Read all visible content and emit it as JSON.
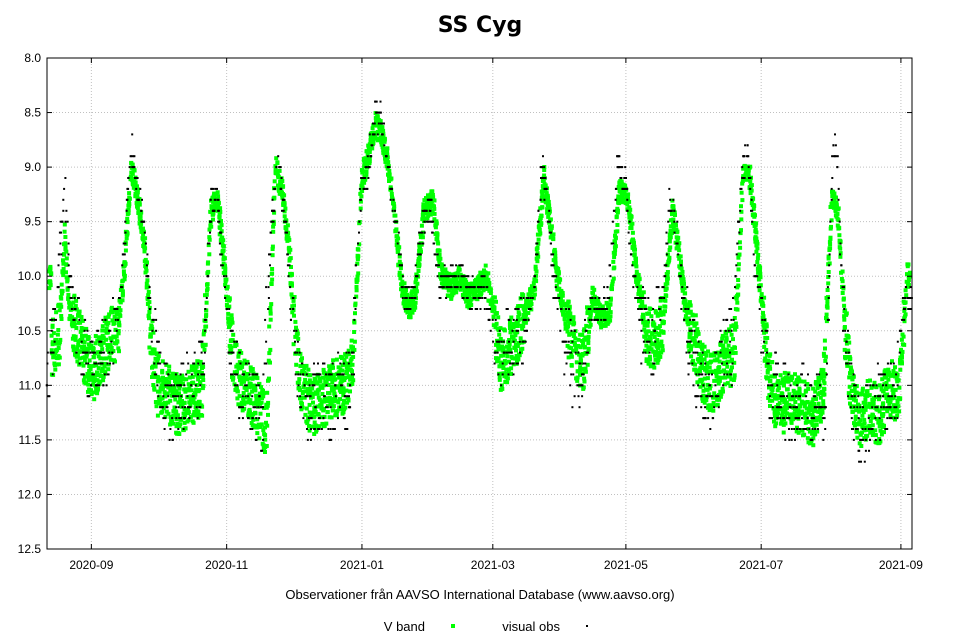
{
  "chart_data": {
    "type": "scatter",
    "title": "SS Cyg",
    "xlabel": "",
    "ylabel": "",
    "credit": "Observationer från AAVSO International Database (www.aavso.org)",
    "y_inverted": true,
    "ylim": [
      8.0,
      12.5
    ],
    "yticks": [
      "8.0",
      "8.5",
      "9.0",
      "9.5",
      "10.0",
      "10.5",
      "11.0",
      "11.5",
      "12.0",
      "12.5"
    ],
    "ytick_values": [
      8.0,
      8.5,
      9.0,
      9.5,
      10.0,
      10.5,
      11.0,
      11.5,
      12.0,
      12.5
    ],
    "xlim_days": [
      0,
      390
    ],
    "x_start": "2020-08-12",
    "xticks": [
      "2020-09",
      "2020-11",
      "2021-01",
      "2021-03",
      "2021-05",
      "2021-07",
      "2021-09"
    ],
    "xtick_days": [
      20,
      81,
      142,
      201,
      261,
      322,
      385
    ],
    "grid": true,
    "legend_position": "bottom-center",
    "colors": {
      "v_band": "#00ff00",
      "visual": "#000000",
      "grid": "#c0c0c0",
      "axis": "#000000"
    },
    "series": [
      {
        "name": "V band",
        "marker": "square",
        "color": "#00ff00",
        "light_curve": [
          [
            2,
            10.7
          ],
          [
            6,
            10.5
          ],
          [
            8,
            9.6
          ],
          [
            10,
            10.3
          ],
          [
            15,
            10.6
          ],
          [
            20,
            10.9
          ],
          [
            25,
            10.7
          ],
          [
            28,
            10.6
          ],
          [
            32,
            10.5
          ],
          [
            35,
            9.9
          ],
          [
            38,
            9.0
          ],
          [
            41,
            9.3
          ],
          [
            44,
            9.7
          ],
          [
            47,
            10.6
          ],
          [
            50,
            11.0
          ],
          [
            55,
            11.1
          ],
          [
            60,
            11.2
          ],
          [
            65,
            11.1
          ],
          [
            70,
            11.0
          ],
          [
            74,
            9.4
          ],
          [
            77,
            9.3
          ],
          [
            80,
            9.9
          ],
          [
            83,
            10.6
          ],
          [
            86,
            10.9
          ],
          [
            90,
            11.0
          ],
          [
            95,
            11.2
          ],
          [
            99,
            11.4
          ],
          [
            103,
            9.0
          ],
          [
            106,
            9.2
          ],
          [
            109,
            9.7
          ],
          [
            112,
            10.6
          ],
          [
            115,
            11.0
          ],
          [
            120,
            11.2
          ],
          [
            125,
            11.1
          ],
          [
            130,
            11.0
          ],
          [
            134,
            11.0
          ],
          [
            138,
            10.8
          ],
          [
            142,
            9.1
          ],
          [
            145,
            8.9
          ],
          [
            148,
            8.6
          ],
          [
            151,
            8.7
          ],
          [
            154,
            9.0
          ],
          [
            157,
            9.5
          ],
          [
            160,
            10.1
          ],
          [
            163,
            10.3
          ],
          [
            166,
            10.2
          ],
          [
            170,
            9.4
          ],
          [
            174,
            9.3
          ],
          [
            178,
            10.0
          ],
          [
            182,
            10.1
          ],
          [
            186,
            10.0
          ],
          [
            190,
            10.2
          ],
          [
            194,
            10.1
          ],
          [
            198,
            10.0
          ],
          [
            201,
            10.3
          ],
          [
            205,
            10.8
          ],
          [
            210,
            10.6
          ],
          [
            215,
            10.4
          ],
          [
            220,
            10.1
          ],
          [
            224,
            9.1
          ],
          [
            227,
            9.5
          ],
          [
            230,
            10.0
          ],
          [
            234,
            10.4
          ],
          [
            238,
            10.7
          ],
          [
            242,
            10.8
          ],
          [
            246,
            10.2
          ],
          [
            250,
            10.4
          ],
          [
            254,
            10.3
          ],
          [
            258,
            9.2
          ],
          [
            262,
            9.3
          ],
          [
            266,
            10.0
          ],
          [
            270,
            10.5
          ],
          [
            274,
            10.6
          ],
          [
            278,
            10.4
          ],
          [
            282,
            9.4
          ],
          [
            285,
            9.8
          ],
          [
            288,
            10.3
          ],
          [
            292,
            10.6
          ],
          [
            296,
            10.9
          ],
          [
            300,
            11.0
          ],
          [
            305,
            10.8
          ],
          [
            310,
            10.7
          ],
          [
            314,
            9.0
          ],
          [
            317,
            9.1
          ],
          [
            320,
            9.7
          ],
          [
            323,
            10.4
          ],
          [
            326,
            11.0
          ],
          [
            330,
            11.2
          ],
          [
            335,
            11.1
          ],
          [
            340,
            11.2
          ],
          [
            345,
            11.3
          ],
          [
            350,
            11.1
          ],
          [
            354,
            9.2
          ],
          [
            357,
            9.5
          ],
          [
            360,
            10.5
          ],
          [
            363,
            11.1
          ],
          [
            367,
            11.3
          ],
          [
            371,
            11.2
          ],
          [
            375,
            11.3
          ],
          [
            380,
            11.0
          ],
          [
            384,
            11.1
          ],
          [
            388,
            10.0
          ]
        ]
      },
      {
        "name": "visual obs",
        "marker": "dot",
        "color": "#000000",
        "light_curve": [
          [
            0,
            10.8
          ],
          [
            3,
            10.6
          ],
          [
            6,
            9.7
          ],
          [
            8,
            9.2
          ],
          [
            10,
            10.0
          ],
          [
            14,
            10.5
          ],
          [
            19,
            10.8
          ],
          [
            24,
            10.8
          ],
          [
            29,
            10.6
          ],
          [
            33,
            10.2
          ],
          [
            36,
            9.4
          ],
          [
            38,
            8.8
          ],
          [
            41,
            9.2
          ],
          [
            44,
            9.6
          ],
          [
            47,
            10.4
          ],
          [
            51,
            11.0
          ],
          [
            56,
            11.2
          ],
          [
            61,
            11.1
          ],
          [
            66,
            11.0
          ],
          [
            71,
            10.8
          ],
          [
            74,
            9.3
          ],
          [
            77,
            9.4
          ],
          [
            80,
            10.0
          ],
          [
            83,
            10.7
          ],
          [
            87,
            11.0
          ],
          [
            92,
            11.1
          ],
          [
            97,
            11.3
          ],
          [
            101,
            9.6
          ],
          [
            104,
            9.0
          ],
          [
            107,
            9.4
          ],
          [
            110,
            10.2
          ],
          [
            113,
            10.8
          ],
          [
            118,
            11.2
          ],
          [
            123,
            11.1
          ],
          [
            128,
            11.2
          ],
          [
            133,
            11.0
          ],
          [
            137,
            11.1
          ],
          [
            141,
            9.3
          ],
          [
            145,
            9.0
          ],
          [
            148,
            8.5
          ],
          [
            151,
            8.6
          ],
          [
            154,
            9.1
          ],
          [
            158,
            9.6
          ],
          [
            161,
            10.2
          ],
          [
            165,
            10.2
          ],
          [
            169,
            9.6
          ],
          [
            173,
            9.4
          ],
          [
            177,
            10.1
          ],
          [
            181,
            10.0
          ],
          [
            185,
            10.0
          ],
          [
            189,
            10.1
          ],
          [
            193,
            10.2
          ],
          [
            197,
            10.1
          ],
          [
            201,
            10.4
          ],
          [
            205,
            10.7
          ],
          [
            210,
            10.6
          ],
          [
            215,
            10.5
          ],
          [
            220,
            10.0
          ],
          [
            223,
            9.0
          ],
          [
            226,
            9.4
          ],
          [
            229,
            10.1
          ],
          [
            233,
            10.5
          ],
          [
            237,
            10.8
          ],
          [
            241,
            10.9
          ],
          [
            245,
            10.3
          ],
          [
            249,
            10.3
          ],
          [
            253,
            10.2
          ],
          [
            257,
            9.0
          ],
          [
            261,
            9.2
          ],
          [
            265,
            10.1
          ],
          [
            269,
            10.5
          ],
          [
            273,
            10.6
          ],
          [
            277,
            10.3
          ],
          [
            281,
            9.3
          ],
          [
            284,
            9.6
          ],
          [
            287,
            10.3
          ],
          [
            291,
            10.7
          ],
          [
            295,
            11.0
          ],
          [
            300,
            11.1
          ],
          [
            304,
            10.8
          ],
          [
            309,
            10.6
          ],
          [
            313,
            9.1
          ],
          [
            316,
            8.8
          ],
          [
            319,
            9.8
          ],
          [
            322,
            10.5
          ],
          [
            326,
            11.0
          ],
          [
            331,
            11.1
          ],
          [
            336,
            11.2
          ],
          [
            341,
            11.1
          ],
          [
            346,
            11.2
          ],
          [
            351,
            11.2
          ],
          [
            354,
            9.0
          ],
          [
            356,
            8.8
          ],
          [
            359,
            10.4
          ],
          [
            362,
            11.0
          ],
          [
            366,
            11.4
          ],
          [
            370,
            11.3
          ],
          [
            374,
            11.2
          ],
          [
            379,
            11.1
          ],
          [
            383,
            11.0
          ],
          [
            387,
            10.2
          ]
        ]
      }
    ]
  }
}
